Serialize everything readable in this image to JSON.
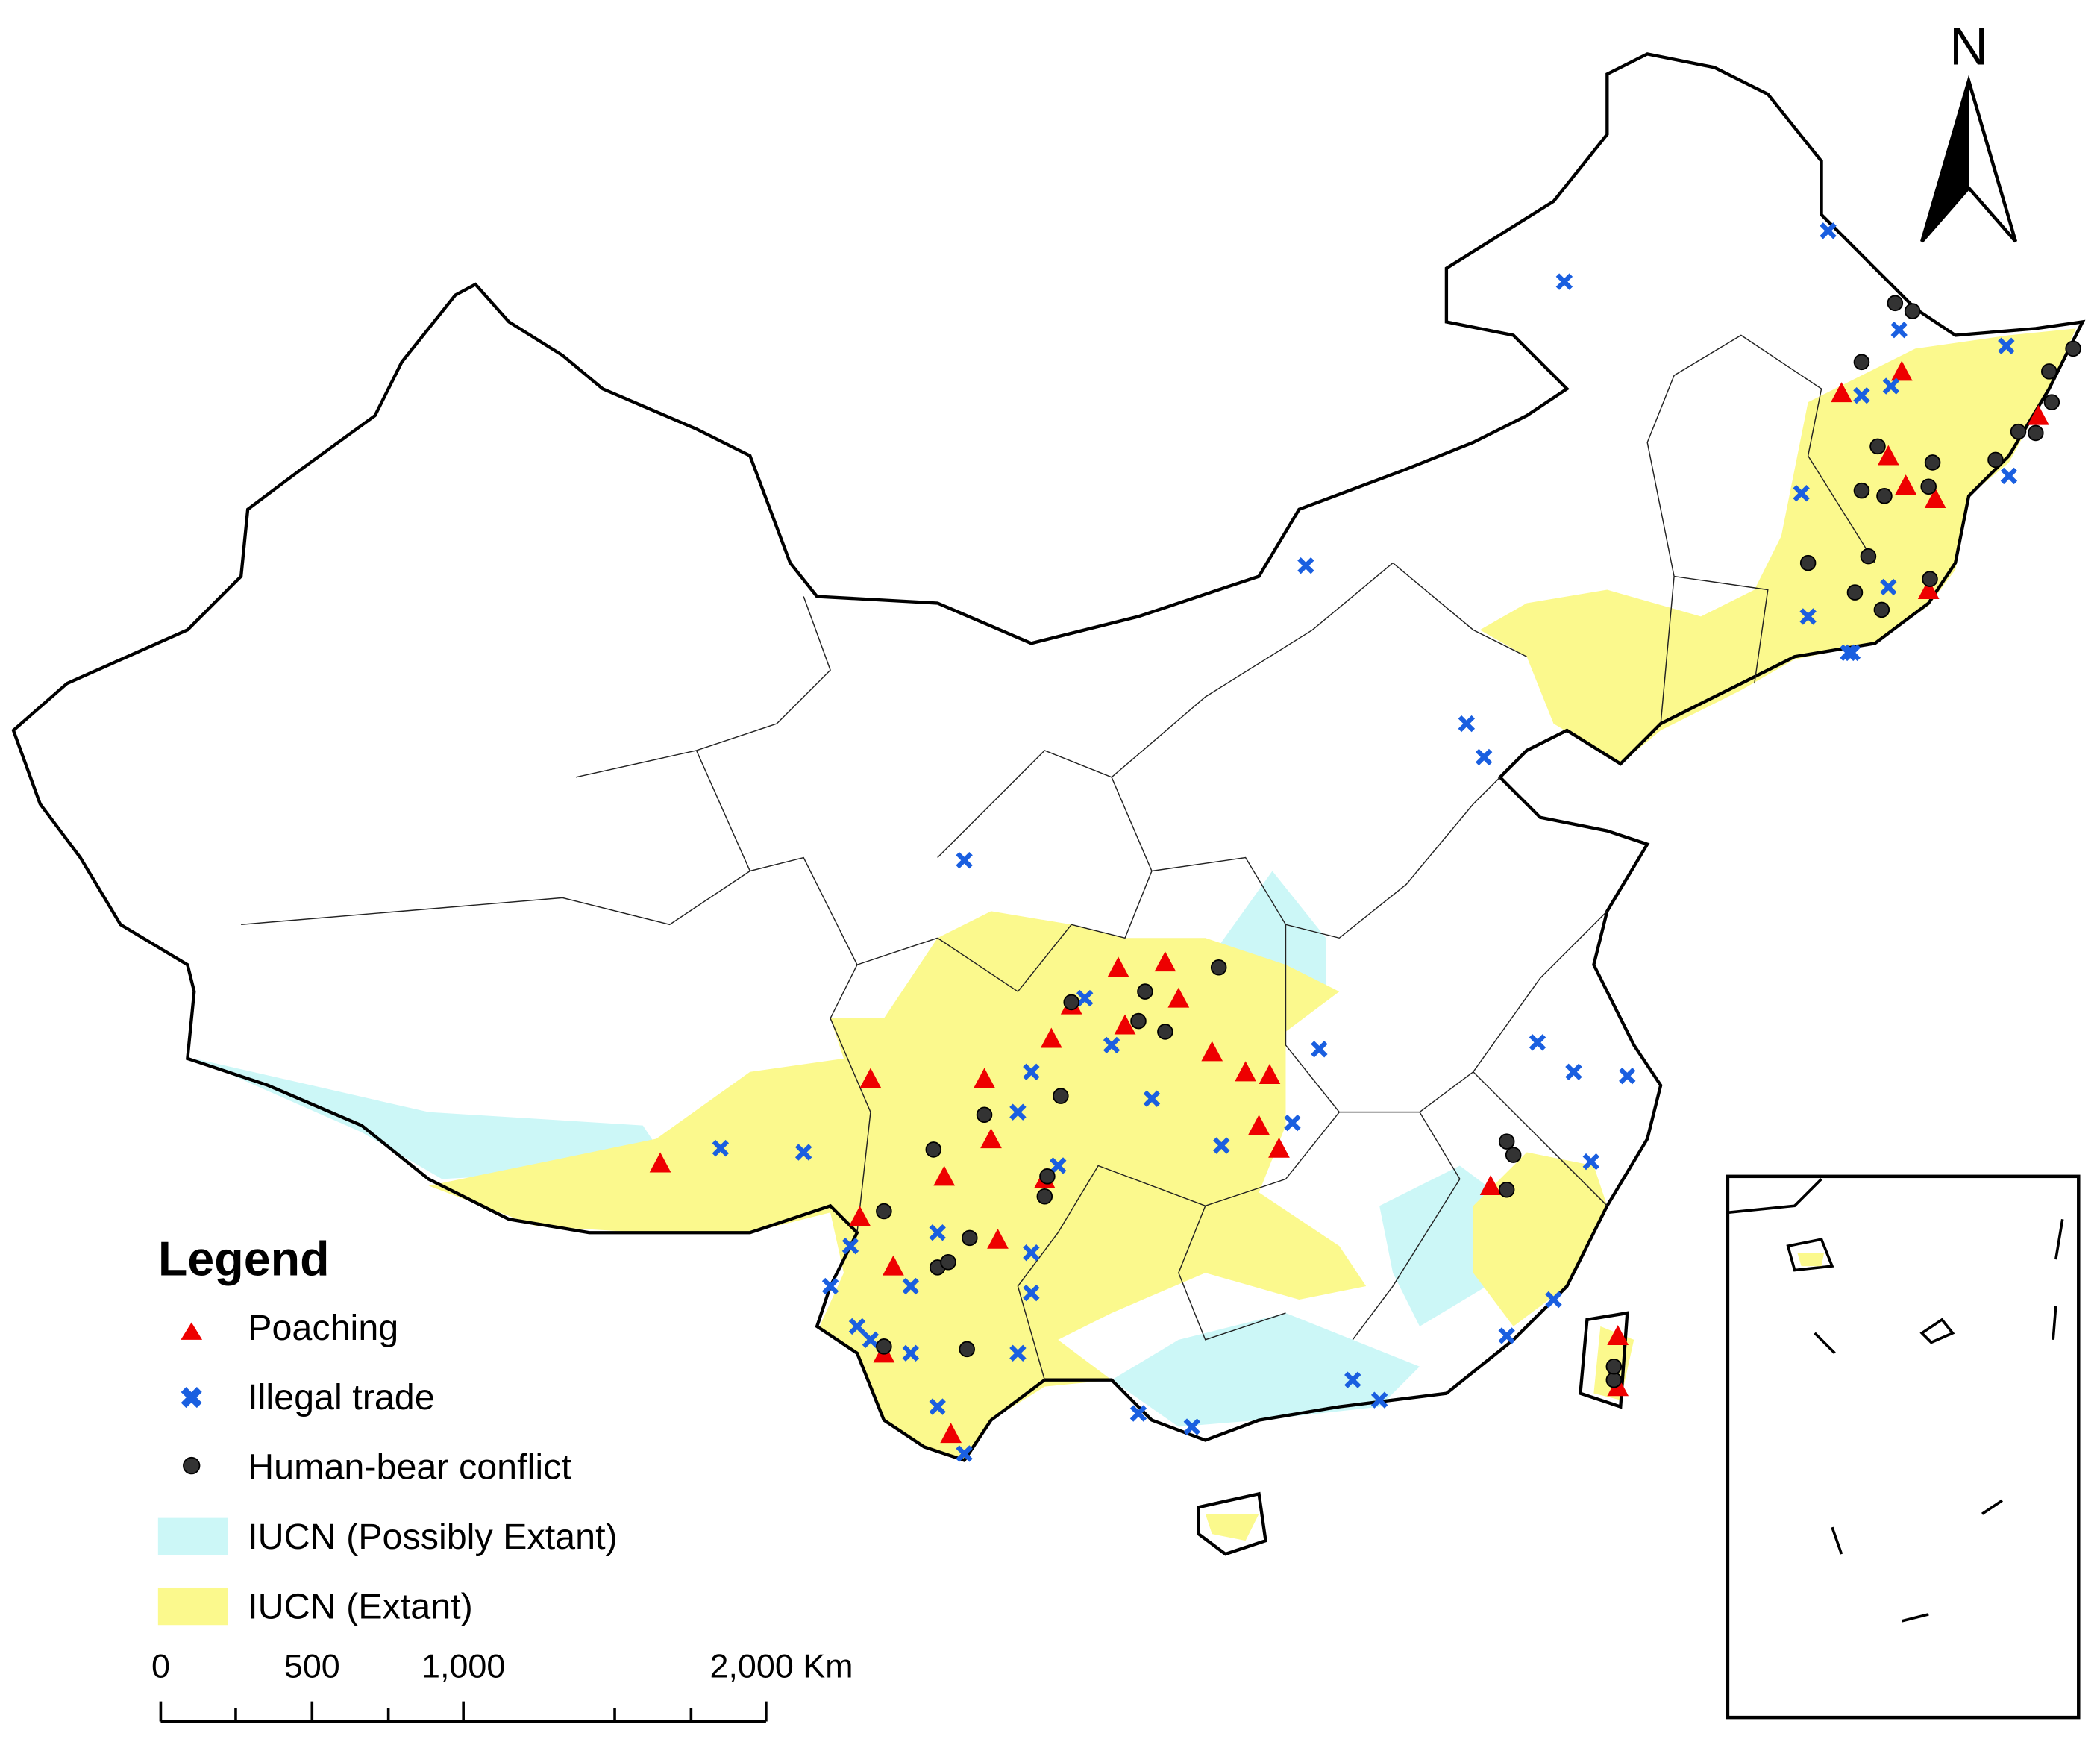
{
  "north": "N",
  "legend": {
    "title": "Legend",
    "items": [
      "Poaching",
      "Illegal trade",
      "Human-bear conflict",
      "IUCN (Possibly Extant)",
      "IUCN (Extant)"
    ]
  },
  "scale_bar": {
    "labels": [
      "0",
      "500",
      "1,000",
      "2,000 Km"
    ]
  }
}
